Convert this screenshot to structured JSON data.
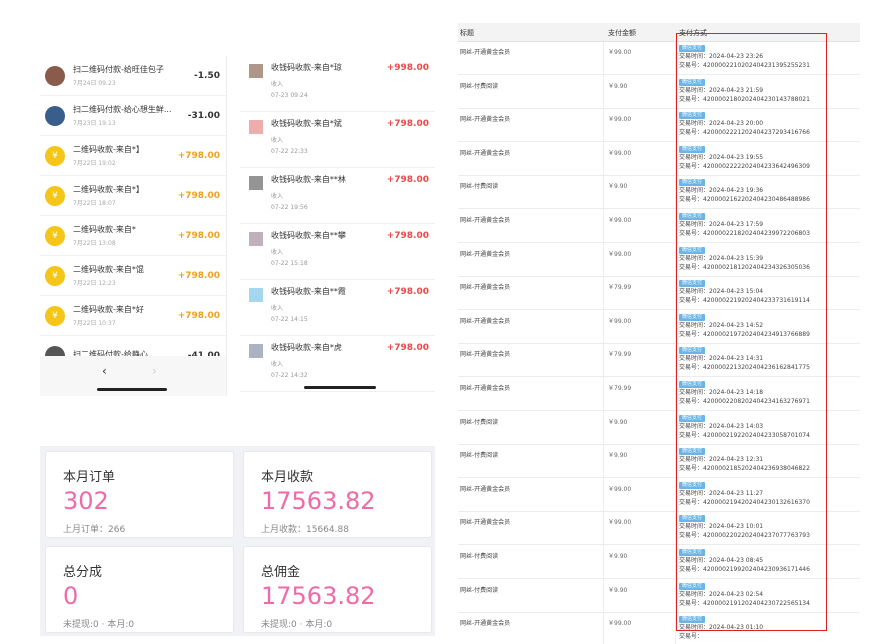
{
  "left_list": {
    "rows": [
      {
        "title": "扫二维码付款-给旺佳包子",
        "date": "7月24日 09:23",
        "amount": "-1.50",
        "kind": "neg",
        "icon": "photo"
      },
      {
        "title": "扫二维码付款-给心想生鲜...",
        "date": "7月23日 19:13",
        "amount": "-31.00",
        "kind": "neg",
        "icon": "photo2"
      },
      {
        "title": "二维码收款-来自*】",
        "date": "7月22日 19:02",
        "amount": "+798.00",
        "kind": "pos",
        "icon": "coin"
      },
      {
        "title": "二维码收款-来自*】",
        "date": "7月22日 18:07",
        "amount": "+798.00",
        "kind": "pos",
        "icon": "coin"
      },
      {
        "title": "二维码收款-来自*",
        "date": "7月22日 13:08",
        "amount": "+798.00",
        "kind": "pos",
        "icon": "coin"
      },
      {
        "title": "二维码收款-来自*馄",
        "date": "7月22日 12:23",
        "amount": "+798.00",
        "kind": "pos",
        "icon": "coin"
      },
      {
        "title": "二维码收款-来自*好",
        "date": "7月22日 10:37",
        "amount": "+798.00",
        "kind": "pos",
        "icon": "coin"
      },
      {
        "title": "扫二维码付款-给静心",
        "date": "",
        "amount": "-41.00",
        "kind": "neg",
        "icon": "photo3"
      }
    ],
    "prev": "‹",
    "next": "›"
  },
  "mid_list": {
    "rows": [
      {
        "title": "收钱码收款-来自*琼",
        "sub": "收入",
        "date": "07-23 09:24",
        "amount": "+998.00",
        "color": "#8b6a55"
      },
      {
        "title": "收钱码收款-来自*斌",
        "sub": "收入",
        "date": "07-22 22:33",
        "amount": "+798.00",
        "color": "#e58a8a"
      },
      {
        "title": "收钱码收款-来自**林",
        "sub": "收入",
        "date": "07-22 19:56",
        "amount": "+798.00",
        "color": "#666"
      },
      {
        "title": "收钱码收款-来自**攀",
        "sub": "收入",
        "date": "07-22 15:18",
        "amount": "+798.00",
        "color": "#a58ea0"
      },
      {
        "title": "收钱码收款-来自**霞",
        "sub": "收入",
        "date": "07-22 14:15",
        "amount": "+798.00",
        "color": "#7fc4e8"
      },
      {
        "title": "收钱码收款-来自*虎",
        "sub": "收入",
        "date": "07-22 14:32",
        "amount": "+798.00",
        "color": "#8892a8"
      }
    ]
  },
  "stats": {
    "cards": [
      {
        "label": "本月订单",
        "value": "302",
        "sub": "上月订单：266"
      },
      {
        "label": "本月收款",
        "value": "17563.82",
        "sub": "上月收款：15664.88"
      },
      {
        "label": "总分成",
        "value": "0",
        "sub": "未提现:0 · 本月:0"
      },
      {
        "label": "总佣金",
        "value": "17563.82",
        "sub": "未提现:0 · 本月:0"
      }
    ]
  },
  "orders": {
    "headers": {
      "col1": "标题",
      "col2": "支付金额",
      "col3": "支付方式"
    },
    "pay_tag": "微信支付",
    "time_prefix": "交易时间：",
    "no_prefix": "交易号：",
    "rows": [
      {
        "title": "网丝-开通黄金会员",
        "amount": "￥99.00",
        "time": "2024-04-23 23:26",
        "no": "4200002210202404231395255231"
      },
      {
        "title": "网丝-付费阅读",
        "amount": "￥9.90",
        "time": "2024-04-23 21:59",
        "no": "4200002180202404230143788021"
      },
      {
        "title": "网丝-开通黄金会员",
        "amount": "￥99.00",
        "time": "2024-04-23 20:00",
        "no": "4200002221202404237293416766"
      },
      {
        "title": "网丝-开通黄金会员",
        "amount": "￥99.00",
        "time": "2024-04-23 19:55",
        "no": "4200002222202404233642496309"
      },
      {
        "title": "网丝-付费阅读",
        "amount": "￥9.90",
        "time": "2024-04-23 19:36",
        "no": "4200002162202404230486488986"
      },
      {
        "title": "网丝-开通黄金会员",
        "amount": "￥99.00",
        "time": "2024-04-23 17:59",
        "no": "4200002218202404239972206803"
      },
      {
        "title": "网丝-开通黄金会员",
        "amount": "￥99.00",
        "time": "2024-04-23 15:39",
        "no": "4200002181202404234326305036"
      },
      {
        "title": "网丝-开通黄金会员",
        "amount": "￥79.99",
        "time": "2024-04-23 15:04",
        "no": "4200002219202404233731619114"
      },
      {
        "title": "网丝-开通黄金会员",
        "amount": "￥99.00",
        "time": "2024-04-23 14:52",
        "no": "4200002197202404234913766889"
      },
      {
        "title": "网丝-开通黄金会员",
        "amount": "￥79.99",
        "time": "2024-04-23 14:31",
        "no": "4200002213202404236162841775"
      },
      {
        "title": "网丝-开通黄金会员",
        "amount": "￥79.99",
        "time": "2024-04-23 14:18",
        "no": "4200002208202404234163276971"
      },
      {
        "title": "网丝-付费阅读",
        "amount": "￥9.90",
        "time": "2024-04-23 14:03",
        "no": "4200002192202404233058701074"
      },
      {
        "title": "网丝-付费阅读",
        "amount": "￥9.90",
        "time": "2024-04-23 12:31",
        "no": "4200002185202404236938046822"
      },
      {
        "title": "网丝-开通黄金会员",
        "amount": "￥99.00",
        "time": "2024-04-23 11:27",
        "no": "4200002194202404230132616370"
      },
      {
        "title": "网丝-开通黄金会员",
        "amount": "￥99.00",
        "time": "2024-04-23 10:01",
        "no": "4200002202202404237077763793"
      },
      {
        "title": "网丝-付费阅读",
        "amount": "￥9.90",
        "time": "2024-04-23 08:45",
        "no": "4200002199202404230936171446"
      },
      {
        "title": "网丝-付费阅读",
        "amount": "￥9.90",
        "time": "2024-04-23 02:54",
        "no": "4200002191202404230722565134"
      },
      {
        "title": "网丝-开通黄金会员",
        "amount": "￥99.00",
        "time": "2024-04-23 01:10",
        "no": ""
      }
    ]
  },
  "colors": {
    "accent_pink": "#f06aa8",
    "income_orange": "#f0a020",
    "income_red": "#e74c4c",
    "highlight_red": "#e02020",
    "tag_blue": "#6ab4e8"
  }
}
